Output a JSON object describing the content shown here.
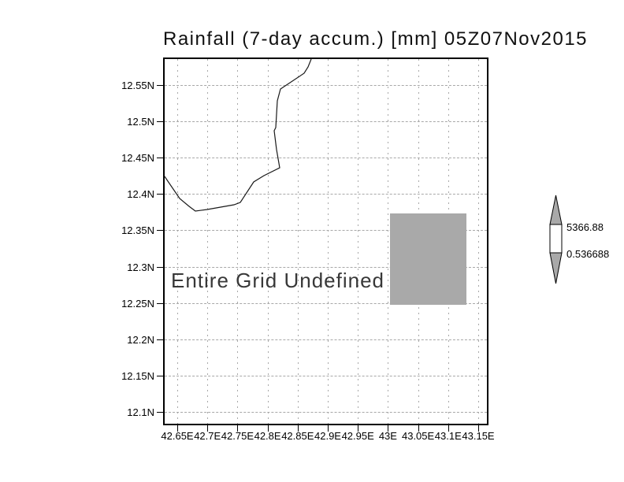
{
  "title": "Rainfall (7-day accum.) [mm] 05Z07Nov2015",
  "plot": {
    "message": "Entire Grid Undefined"
  },
  "axes": {
    "x_labels": [
      "42.65E",
      "42.7E",
      "42.75E",
      "42.8E",
      "42.85E",
      "42.9E",
      "42.95E",
      "43E",
      "43.05E",
      "43.1E",
      "43.15E"
    ],
    "y_labels": [
      "12.55N",
      "12.5N",
      "12.45N",
      "12.4N",
      "12.35N",
      "12.3N",
      "12.25N",
      "12.2N",
      "12.15N",
      "12.1N"
    ]
  },
  "colorbar": {
    "max_label": "5366.88",
    "min_label": "0.536688"
  },
  "colors": {
    "shade_gray": "#a9a9a9",
    "gridline": "#a8a8a8",
    "coastline": "#1a1a1a"
  },
  "map": {
    "coastline_points": [
      [
        186,
        0
      ],
      [
        182,
        10
      ],
      [
        177,
        18
      ],
      [
        147,
        38
      ],
      [
        143,
        53
      ],
      [
        141,
        87
      ],
      [
        139,
        91
      ],
      [
        142,
        115
      ],
      [
        146,
        138
      ],
      [
        126,
        148
      ],
      [
        113,
        156
      ],
      [
        96,
        182
      ],
      [
        88,
        185
      ],
      [
        54,
        191
      ],
      [
        39,
        193
      ],
      [
        31,
        187
      ],
      [
        19,
        177
      ],
      [
        4,
        155
      ],
      [
        0,
        149
      ]
    ]
  },
  "chart_data": {
    "type": "map",
    "title": "Rainfall (7-day accum.) [mm] 05Z07Nov2015",
    "variable": "Rainfall (7-day accum.)",
    "units": "mm",
    "time_label": "05Z07Nov2015",
    "x_tick_labels": [
      "42.65E",
      "42.7E",
      "42.75E",
      "42.8E",
      "42.85E",
      "42.9E",
      "42.95E",
      "43E",
      "43.05E",
      "43.1E",
      "43.15E"
    ],
    "y_tick_labels": [
      "12.55N",
      "12.5N",
      "12.45N",
      "12.4N",
      "12.35N",
      "12.3N",
      "12.25N",
      "12.2N",
      "12.15N",
      "12.1N"
    ],
    "lon_range_deg_east": [
      42.625,
      43.175
    ],
    "lat_range_deg_north": [
      12.075,
      12.575
    ],
    "grid": "dashed",
    "annotation": "Entire Grid Undefined",
    "colorbar": {
      "position": "right",
      "top_value": 5366.88,
      "bottom_value": 0.536688
    },
    "shaded_cell": {
      "lon_deg_east": [
        43.0,
        43.13
      ],
      "lat_deg_north": [
        12.25,
        12.375
      ],
      "color": "#a9a9a9"
    },
    "coastline_present": true
  }
}
